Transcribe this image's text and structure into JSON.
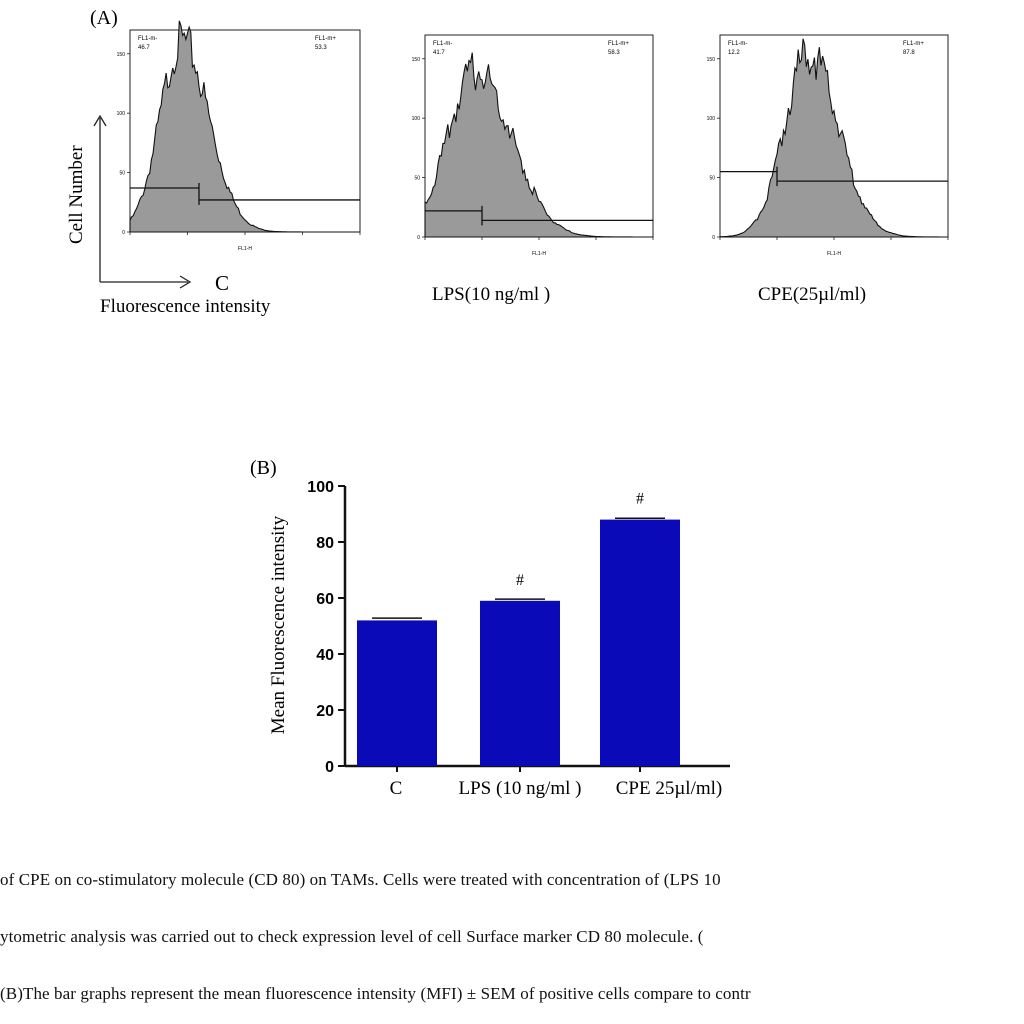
{
  "panel_a": {
    "label": "(A)",
    "y_axis_label": "Cell Number",
    "x_axis_label": "Fluorescence intensity",
    "histograms": [
      {
        "name": "C",
        "gate_left_label": "FL1-m-",
        "gate_left_value": "46.7",
        "gate_right_label": "FL1-m+",
        "gate_right_value": "53.3",
        "x_tick_label": "FL1-H",
        "y_ticks": [
          "0",
          "50",
          "100",
          "150"
        ],
        "peak_count": 160,
        "peak_log10": 0.9,
        "spread": 0.38,
        "gate_y_left": 37,
        "gate_y_right": 27,
        "gate_split_log10": 1.2
      },
      {
        "name": "LPS(10 ng/ml )",
        "gate_left_label": "FL1-m-",
        "gate_left_value": "41.7",
        "gate_right_label": "FL1-m+",
        "gate_right_value": "58.3",
        "x_tick_label": "FL1-H",
        "y_ticks": [
          "0",
          "50",
          "100",
          "150"
        ],
        "peak_count": 140,
        "peak_log10": 0.9,
        "spread": 0.5,
        "gate_y_left": 22,
        "gate_y_right": 14,
        "gate_split_log10": 1.0
      },
      {
        "name": "CPE(25µl/ml)",
        "gate_left_label": "FL1-m-",
        "gate_left_value": "12.2",
        "gate_right_label": "FL1-m+",
        "gate_right_value": "87.8",
        "x_tick_label": "FL1-H",
        "y_ticks": [
          "0",
          "50",
          "100",
          "150"
        ],
        "peak_count": 155,
        "peak_log10": 1.55,
        "spread": 0.42,
        "gate_y_left": 55,
        "gate_y_right": 47,
        "gate_split_log10": 1.0
      }
    ]
  },
  "chart_data": [
    {
      "type": "bar",
      "panel_label": "(B)",
      "categories": [
        "C",
        "LPS (10 ng/ml )",
        "CPE  25µl/ml)"
      ],
      "values": [
        52,
        59,
        88
      ],
      "errors": [
        0.8,
        0.6,
        0.5
      ],
      "annotations": [
        "",
        "#",
        "#"
      ],
      "ylabel": "Mean Fluorescence intensity",
      "ylim": [
        0,
        100
      ],
      "yticks": [
        0,
        20,
        40,
        60,
        80,
        100
      ],
      "bar_color": "#0a0ab8"
    }
  ],
  "caption": {
    "line1": "of CPE on co-stimulatory molecule (CD 80) on TAMs. Cells were treated with concentration of (LPS 10",
    "line2": "ytometric analysis was carried out to check  expression level  of cell Surface marker CD 80 molecule. (",
    "line3": "(B)The bar graphs represent the mean fluorescence intensity (MFI) ± SEM of positive cells compare to contr"
  }
}
